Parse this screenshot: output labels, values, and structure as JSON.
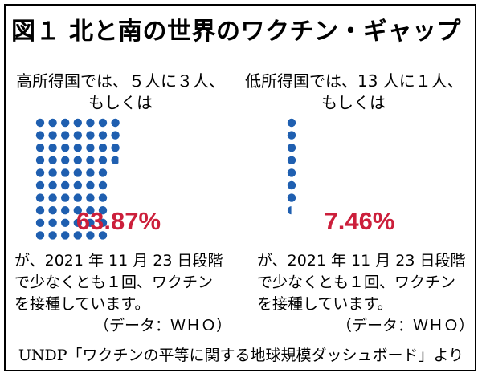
{
  "title": "図１ 北と南の世界のワクチン・ギャップ",
  "footer": "UNDP「ワクチンの平等に関する地球規模ダッシュボード」より",
  "colors": {
    "dot": "#1f5fb0",
    "percent": "#cc1f3b"
  },
  "panels": [
    {
      "heading_line1": "高所得国では、５人に３人、",
      "heading_line2": "もしくは",
      "percent_label": "63.87%",
      "desc_line1": "が、2021 年 11 月 23 日段階",
      "desc_line2": "で少なくとも１回、ワクチン",
      "desc_line3": "を接種しています。",
      "source": "（データ：ＷＨＯ）"
    },
    {
      "heading_line1": "低所得国では、13 人に１人、",
      "heading_line2": "もしくは",
      "percent_label": "7.46%",
      "desc_line1": "が、2021 年 11 月 23 日段階",
      "desc_line2": "で少なくとも１回、ワクチン",
      "desc_line3": "を接種しています。",
      "source": "（データ：ＷＨＯ）"
    }
  ],
  "chart_data": [
    {
      "type": "waffle",
      "category": "高所得国",
      "value": 63.87,
      "unit": "%",
      "total": 100
    },
    {
      "type": "waffle",
      "category": "低所得国",
      "value": 7.46,
      "unit": "%",
      "total": 100
    }
  ]
}
